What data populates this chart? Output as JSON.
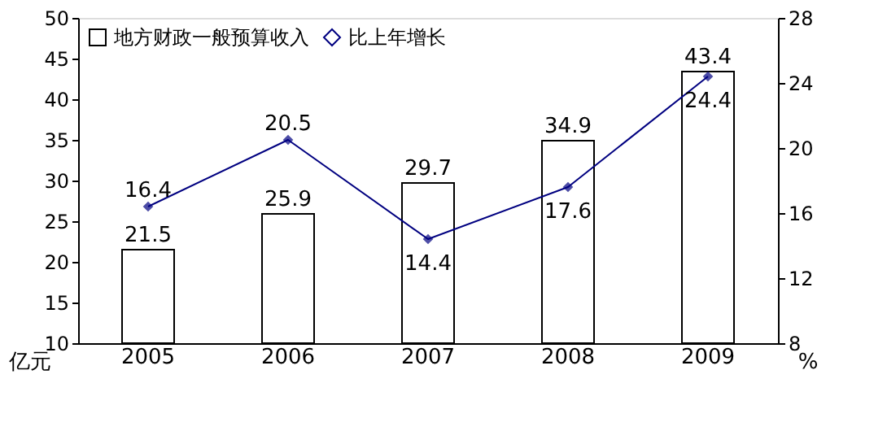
{
  "chart_data": {
    "type": "bar",
    "categories": [
      "2005",
      "2006",
      "2007",
      "2008",
      "2009"
    ],
    "series": [
      {
        "name": "地方财政一般预算收入",
        "color": "#ffffff",
        "values": [
          21.5,
          25.9,
          29.7,
          34.9,
          43.4
        ]
      },
      {
        "name": "比上年增长",
        "type": "line",
        "axis": "y2",
        "color": "#000080",
        "marker": "diamond",
        "values": [
          16.4,
          20.5,
          14.4,
          17.6,
          24.4
        ]
      }
    ],
    "ylabel": "亿元",
    "y2label": "%",
    "ylim": [
      10,
      50
    ],
    "yticks": [
      10,
      15,
      20,
      25,
      30,
      35,
      40,
      45,
      50
    ],
    "y2lim": [
      8,
      28
    ],
    "y2ticks": [
      8,
      12,
      16,
      20,
      24,
      28
    ],
    "data_labels": true,
    "legend": "top left",
    "grid": false
  }
}
